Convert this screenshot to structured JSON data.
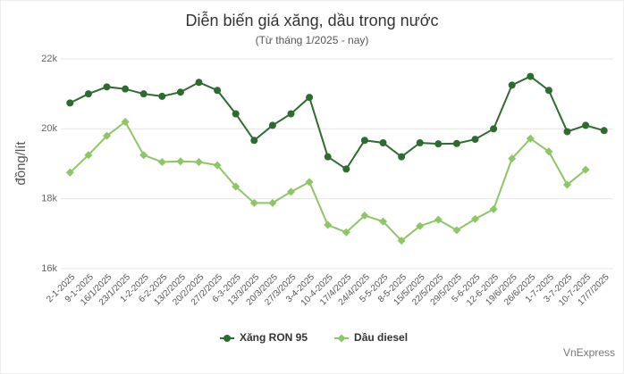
{
  "chart_data": {
    "type": "line",
    "title": "Diễn biến giá xăng, dầu trong nước",
    "subtitle": "(Từ tháng 1/2025 - nay)",
    "y_label": "đồng/lít",
    "source": "VnExpress",
    "categories": [
      "2-1-2025",
      "9-1-2025",
      "16/1/2025",
      "23/1/2025",
      "1-2-2025",
      "6-2-2025",
      "13/2/2025",
      "20/2/2025",
      "27/2/2025",
      "6-3-2025",
      "13/3/2025",
      "20/3/2025",
      "27/3/2025",
      "3-4-2025",
      "10-4-2025",
      "17/4/2025",
      "24/4/2025",
      "5-5-2025",
      "8-5-2025",
      "15/5/2025",
      "22/5/2025",
      "29/5/2025",
      "5-6-2025",
      "12-6-2025",
      "19/6/2025",
      "26/6/2025",
      "1-7-2025",
      "3-7-2025",
      "10-7-2025",
      "17/7/2025"
    ],
    "series": [
      {
        "name": "Xăng RON 95",
        "color": "#2e6b30",
        "values": [
          20740,
          21000,
          21200,
          21140,
          21000,
          20930,
          21050,
          21330,
          21100,
          20430,
          19670,
          20100,
          20430,
          20900,
          19200,
          18850,
          19670,
          19600,
          19200,
          19600,
          19570,
          19580,
          19700,
          20000,
          21250,
          21500,
          21100,
          19920,
          20100,
          19950
        ]
      },
      {
        "name": "Dầu diesel",
        "color": "#8cc665",
        "values": [
          18750,
          19250,
          19800,
          20200,
          19250,
          19050,
          19070,
          19050,
          18960,
          18350,
          17880,
          17880,
          18200,
          18480,
          17250,
          17040,
          17520,
          17350,
          16800,
          17220,
          17400,
          17100,
          17420,
          17700,
          19150,
          19720,
          19350,
          18400,
          18830,
          null
        ]
      }
    ],
    "ylim": [
      16000,
      22000
    ],
    "yticks": [
      {
        "value": 16000,
        "label": "16k"
      },
      {
        "value": 18000,
        "label": "18k"
      },
      {
        "value": 20000,
        "label": "20k"
      },
      {
        "value": 22000,
        "label": "22k"
      }
    ],
    "grid": true
  }
}
